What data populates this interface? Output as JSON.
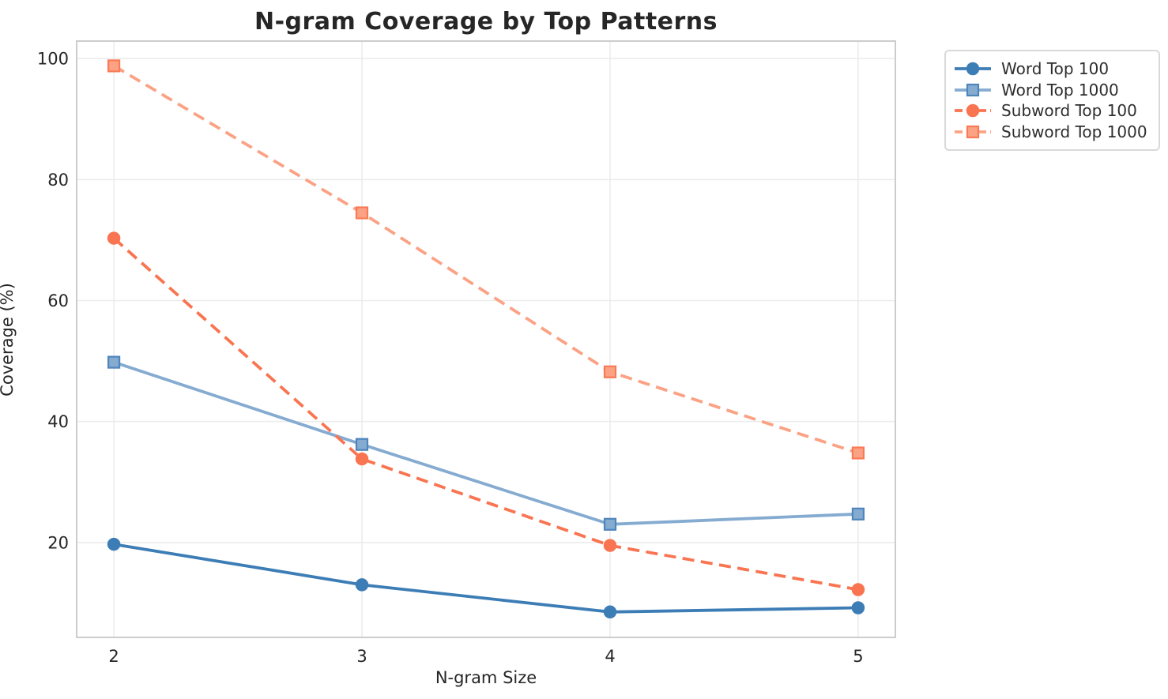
{
  "chart_data": {
    "type": "line",
    "title": "N-gram Coverage by Top Patterns",
    "xlabel": "N-gram Size",
    "ylabel": "Coverage (%)",
    "x": [
      2,
      3,
      4,
      5
    ],
    "xticks": [
      "2",
      "3",
      "4",
      "5"
    ],
    "yticks": [
      20,
      40,
      60,
      80,
      100
    ],
    "xlim": [
      1.85,
      5.15
    ],
    "ylim": [
      4.3,
      102.9
    ],
    "grid": true,
    "legend_position": "outside-top-right",
    "series": [
      {
        "name": "Word Top 100",
        "values": [
          19.7,
          13.0,
          8.5,
          9.2
        ],
        "color": "#3D7DB6",
        "edge_color": "#3D7DB6",
        "marker": "circle",
        "line_style": "solid"
      },
      {
        "name": "Word Top 1000",
        "values": [
          49.8,
          36.2,
          23.0,
          24.7
        ],
        "color": "#85ABD1",
        "edge_color": "#4E86BC",
        "marker": "square",
        "line_style": "solid"
      },
      {
        "name": "Subword Top 100",
        "values": [
          70.3,
          33.8,
          19.5,
          12.2
        ],
        "color": "#F97450",
        "edge_color": "#F97450",
        "marker": "circle",
        "line_style": "dashed"
      },
      {
        "name": "Subword Top 1000",
        "values": [
          98.8,
          74.5,
          48.2,
          34.8
        ],
        "color": "#FBA285",
        "edge_color": "#F97A55",
        "marker": "square",
        "line_style": "dashed"
      }
    ]
  },
  "theme": {
    "grid_color": "#ececec",
    "spine_color": "#cdcdcd",
    "text_color": "#262626",
    "background": "#ffffff"
  }
}
